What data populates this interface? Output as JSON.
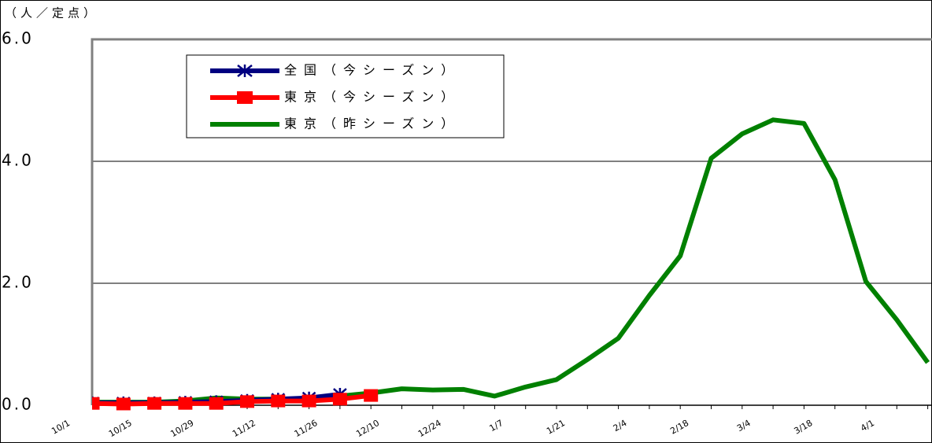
{
  "chart_data": {
    "type": "line",
    "y_axis_label": "（人／定点）",
    "categories": [
      "10/1",
      null,
      "10/15",
      null,
      "10/29",
      null,
      "11/12",
      null,
      "11/26",
      null,
      "12/10",
      null,
      "12/24",
      null,
      "1/7",
      null,
      "1/21",
      null,
      "2/4",
      null,
      "2/18",
      null,
      "3/4",
      null,
      "3/18",
      null,
      "4/1",
      null,
      null
    ],
    "series": [
      {
        "name": "全国（今シーズン）",
        "color": "#000080",
        "marker": "star",
        "values": [
          null,
          0.04,
          0.04,
          0.04,
          0.05,
          0.06,
          0.08,
          0.1,
          0.12,
          0.18,
          null,
          null,
          null,
          null,
          null,
          null,
          null,
          null,
          null,
          null,
          null,
          null,
          null,
          null,
          null,
          null,
          null,
          null,
          null
        ]
      },
      {
        "name": "東京（今シーズン）",
        "color": "#ff0000",
        "marker": "square",
        "values": [
          null,
          0.03,
          0.02,
          0.03,
          0.03,
          0.03,
          0.06,
          0.07,
          0.07,
          0.1,
          0.16,
          null,
          null,
          null,
          null,
          null,
          null,
          null,
          null,
          null,
          null,
          null,
          null,
          null,
          null,
          null,
          null,
          null,
          null
        ]
      },
      {
        "name": "東京（昨シーズン）",
        "color": "#008000",
        "marker": "none",
        "values": [
          null,
          0.05,
          0.05,
          0.05,
          0.07,
          0.12,
          0.1,
          0.1,
          0.1,
          0.15,
          0.2,
          0.27,
          0.25,
          0.26,
          0.15,
          0.3,
          0.42,
          0.75,
          1.1,
          1.8,
          2.45,
          4.05,
          4.45,
          4.68,
          4.62,
          3.7,
          2.03,
          1.4,
          0.7
        ]
      }
    ],
    "ylim": [
      0,
      6
    ],
    "yticks": [
      {
        "value": 0,
        "label": "0.0"
      },
      {
        "value": 2,
        "label": "2.0"
      },
      {
        "value": 4,
        "label": "4.0"
      },
      {
        "value": 6,
        "label": "6.0"
      }
    ],
    "grid": true,
    "legend": "upper left"
  }
}
